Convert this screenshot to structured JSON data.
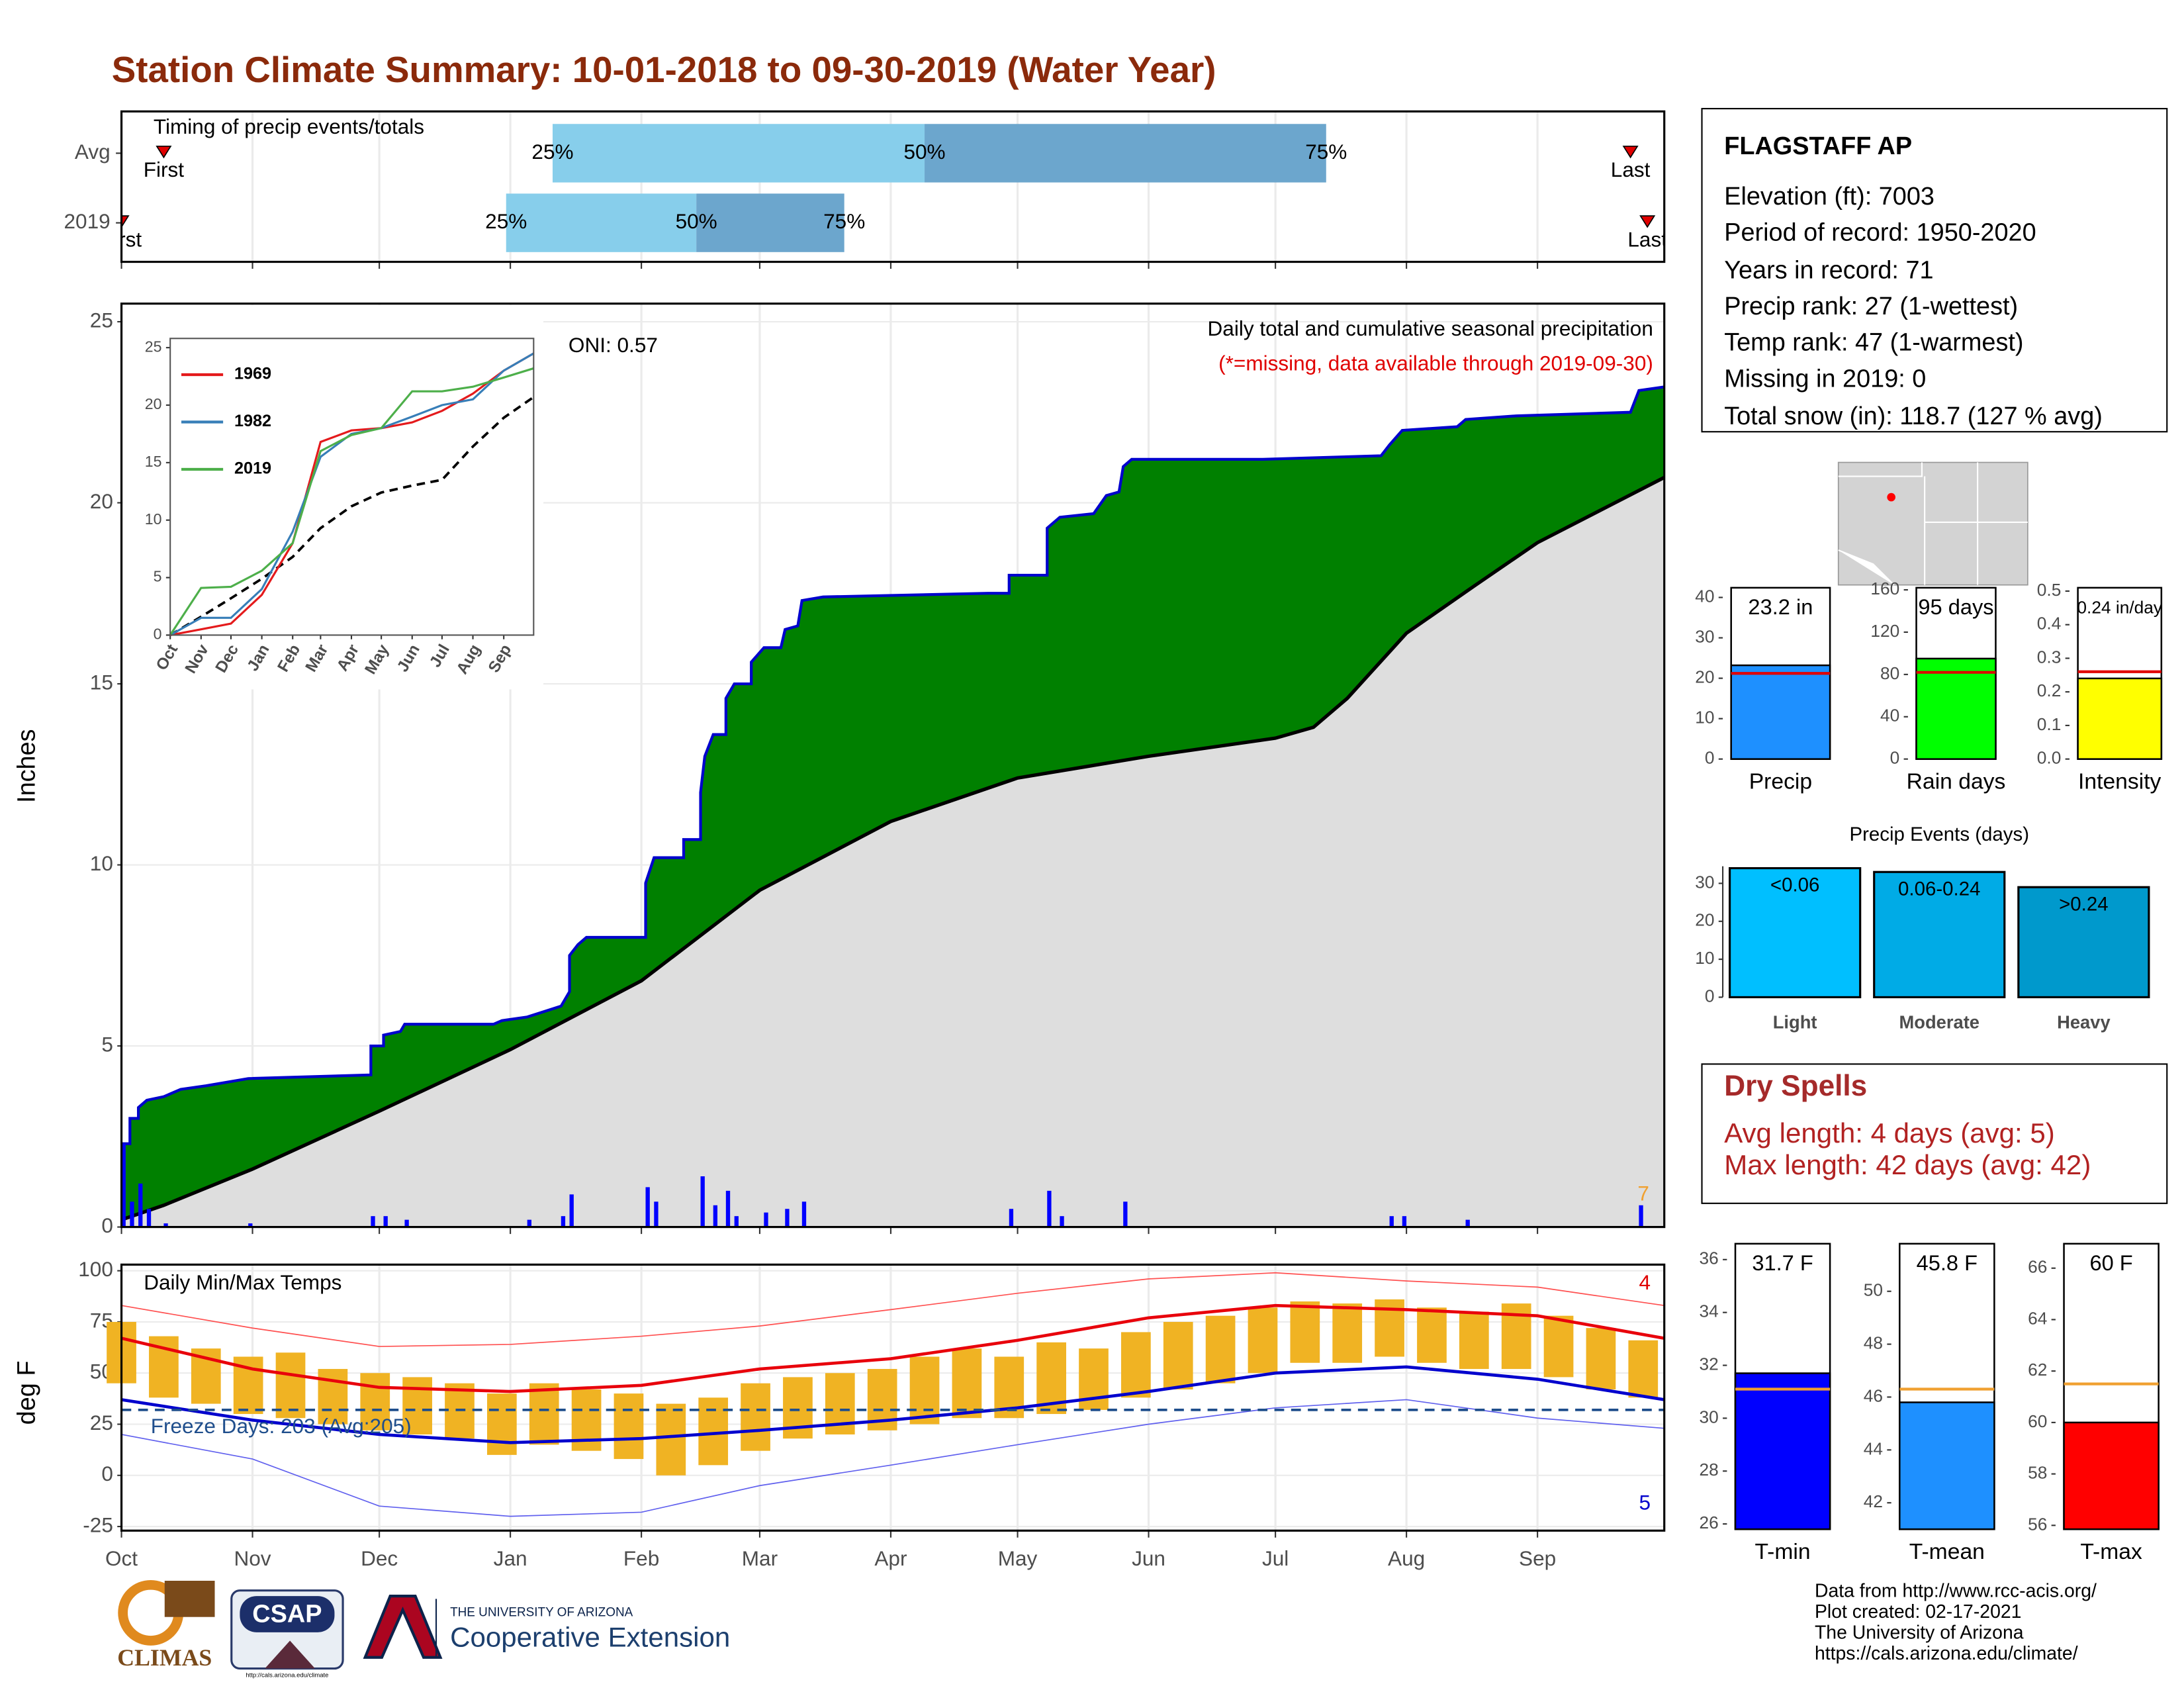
{
  "title": "Station Climate Summary: 10-01-2018 to 09-30-2019 (Water Year)",
  "chart_data": [
    {
      "type": "timing",
      "title": "Timing of precip events/totals",
      "xlim": [
        0,
        365
      ],
      "xticks": [
        0,
        31,
        61,
        92,
        123,
        151,
        182,
        212,
        243,
        273,
        304,
        335
      ],
      "grid": true,
      "colors": [
        "#87ceeb",
        "#6ca6cd"
      ],
      "marker_color": "#e00000",
      "rows": [
        {
          "name": "Avg",
          "values": [
            102,
            190,
            285
          ],
          "value_labels": [
            "25%",
            "50%",
            "75%"
          ],
          "first": 10,
          "last": 357,
          "first_label": "First",
          "last_label": "Last"
        },
        {
          "name": "2019",
          "values": [
            91,
            136,
            171
          ],
          "value_labels": [
            "25%",
            "50%",
            "75%"
          ],
          "first": 0,
          "last": 361,
          "first_label": "First",
          "last_label": "Last"
        }
      ]
    },
    {
      "type": "area",
      "title": "Daily total and cumulative seasonal precipitation",
      "subtitle": "(*=missing, data available through 2019-09-30)",
      "oni": "ONI: 0.57",
      "record_days": 7,
      "ylabel": "Inches",
      "xlim": [
        0,
        365
      ],
      "ylim": [
        0,
        25.5
      ],
      "xticks": [
        0,
        31,
        61,
        92,
        123,
        151,
        182,
        212,
        243,
        273,
        304,
        335
      ],
      "yticks": [
        0,
        5,
        10,
        15,
        20,
        25
      ],
      "grid": true,
      "cumulative": {
        "color": "#008000",
        "line_color": "#0000cd",
        "x": [
          0,
          2,
          2,
          4,
          4,
          6,
          10,
          14,
          20,
          30,
          59,
          59,
          62,
          62,
          66,
          67,
          88,
          90,
          96,
          104,
          106,
          106,
          108,
          110,
          124,
          124,
          126,
          133,
          133,
          137,
          137,
          138,
          140,
          143,
          143,
          145,
          149,
          149,
          152,
          156,
          157,
          160,
          161,
          166,
          205,
          210,
          210,
          219,
          219,
          222,
          230,
          233,
          236,
          237,
          239,
          270,
          298,
          300,
          303,
          316,
          318,
          330,
          357,
          359,
          365
        ],
        "values": [
          2.3,
          2.3,
          3.0,
          3.0,
          3.3,
          3.5,
          3.6,
          3.8,
          3.9,
          4.1,
          4.2,
          5.0,
          5.0,
          5.3,
          5.4,
          5.6,
          5.6,
          5.7,
          5.8,
          6.1,
          6.5,
          7.5,
          7.8,
          8.0,
          8.0,
          9.5,
          10.2,
          10.2,
          10.7,
          10.7,
          12.0,
          13.0,
          13.6,
          13.6,
          14.6,
          15.0,
          15.0,
          15.6,
          16.0,
          16.0,
          16.5,
          16.6,
          17.3,
          17.4,
          17.5,
          17.5,
          18.0,
          18.0,
          19.3,
          19.6,
          19.7,
          20.2,
          20.3,
          21.0,
          21.2,
          21.2,
          21.3,
          21.6,
          22.0,
          22.1,
          22.3,
          22.4,
          22.5,
          23.1,
          23.2
        ]
      },
      "average": {
        "color": "#dedede",
        "line_color": "#000000",
        "x": [
          0,
          10,
          31,
          61,
          92,
          123,
          151,
          182,
          212,
          243,
          273,
          282,
          290,
          297,
          304,
          320,
          335,
          365
        ],
        "values": [
          0.2,
          0.6,
          1.6,
          3.2,
          4.9,
          6.8,
          9.3,
          11.2,
          12.4,
          13.0,
          13.5,
          13.8,
          14.6,
          15.5,
          16.4,
          17.7,
          18.9,
          20.7
        ]
      },
      "daily": {
        "color": "#0000ff",
        "x": [
          0,
          2,
          4,
          6,
          10,
          30,
          59,
          62,
          67,
          96,
          104,
          106,
          124,
          126,
          137,
          140,
          143,
          145,
          152,
          157,
          161,
          210,
          219,
          222,
          237,
          300,
          303,
          318,
          359
        ],
        "values": [
          2.3,
          0.7,
          1.2,
          0.5,
          0.1,
          0.1,
          0.3,
          0.3,
          0.2,
          0.2,
          0.3,
          0.9,
          1.1,
          0.7,
          1.4,
          0.6,
          1.0,
          0.3,
          0.4,
          0.5,
          0.7,
          0.5,
          1.0,
          0.3,
          0.7,
          0.3,
          0.3,
          0.2,
          0.6
        ]
      }
    },
    {
      "type": "line",
      "xlim": [
        0,
        365
      ],
      "ylim": [
        0,
        25.8
      ],
      "x": [
        0,
        31,
        61,
        92,
        123,
        151,
        182,
        212,
        243,
        273,
        304,
        335,
        365
      ],
      "xticks": [
        {
          "value": 0,
          "label": "Oct"
        },
        {
          "value": 31,
          "label": "Nov"
        },
        {
          "value": 61,
          "label": "Dec"
        },
        {
          "value": 92,
          "label": "Jan"
        },
        {
          "value": 123,
          "label": "Feb"
        },
        {
          "value": 151,
          "label": "Mar"
        },
        {
          "value": 182,
          "label": "Apr"
        },
        {
          "value": 212,
          "label": "May"
        },
        {
          "value": 243,
          "label": "Jun"
        },
        {
          "value": 273,
          "label": "Jul"
        },
        {
          "value": 304,
          "label": "Aug"
        },
        {
          "value": 335,
          "label": "Sep"
        }
      ],
      "yticks": [
        0,
        5,
        10,
        15,
        20,
        25
      ],
      "series": [
        {
          "name": "1969",
          "color": "#e41a1c",
          "values": [
            0,
            0.5,
            1.0,
            3.5,
            8.0,
            16.8,
            17.8,
            18.0,
            18.5,
            19.5,
            21.0,
            23.0,
            24.5
          ]
        },
        {
          "name": "1982",
          "color": "#377eb8",
          "values": [
            0,
            1.5,
            1.5,
            4.0,
            9.0,
            15.5,
            17.5,
            18.0,
            19.0,
            20.0,
            20.5,
            23.0,
            24.5
          ]
        },
        {
          "name": "2019",
          "color": "#4daf4a",
          "values": [
            0,
            4.1,
            4.2,
            5.6,
            8.0,
            16.0,
            17.4,
            18.0,
            21.2,
            21.2,
            21.6,
            22.4,
            23.2
          ]
        }
      ],
      "average": {
        "color": "#000000",
        "values": [
          0,
          1.6,
          3.2,
          4.9,
          6.8,
          9.3,
          11.2,
          12.4,
          13.0,
          13.5,
          16.4,
          18.9,
          20.7
        ]
      }
    },
    {
      "type": "band",
      "title": "Daily Min/Max Temps",
      "ylabel": "deg F",
      "annotation": "Freeze Days: 203 (Avg:205)",
      "freeze": 32,
      "freeze_color": "#1f4e8c",
      "record_highs": 4,
      "record_lows": 5,
      "xlim": [
        0,
        365
      ],
      "ylim": [
        -27,
        103
      ],
      "grid": true,
      "xticks": [
        {
          "value": 0,
          "label": "Oct"
        },
        {
          "value": 31,
          "label": "Nov"
        },
        {
          "value": 61,
          "label": "Dec"
        },
        {
          "value": 92,
          "label": "Jan"
        },
        {
          "value": 123,
          "label": "Feb"
        },
        {
          "value": 151,
          "label": "Mar"
        },
        {
          "value": 182,
          "label": "Apr"
        },
        {
          "value": 212,
          "label": "May"
        },
        {
          "value": 243,
          "label": "Jun"
        },
        {
          "value": 273,
          "label": "Jul"
        },
        {
          "value": 304,
          "label": "Aug"
        },
        {
          "value": 335,
          "label": "Sep"
        }
      ],
      "yticks": [
        -25,
        0,
        25,
        50,
        75,
        100
      ],
      "observed": {
        "color": "#f0b323",
        "x": [
          0,
          10,
          20,
          30,
          40,
          50,
          60,
          70,
          80,
          90,
          100,
          110,
          120,
          130,
          140,
          150,
          160,
          170,
          180,
          190,
          200,
          210,
          220,
          230,
          240,
          250,
          260,
          270,
          280,
          290,
          300,
          310,
          320,
          330,
          340,
          350,
          360
        ],
        "lows": [
          45,
          38,
          35,
          30,
          28,
          25,
          22,
          20,
          18,
          10,
          15,
          12,
          8,
          0,
          5,
          12,
          18,
          20,
          22,
          25,
          28,
          28,
          30,
          32,
          38,
          42,
          45,
          50,
          55,
          55,
          58,
          55,
          52,
          52,
          48,
          42,
          38
        ],
        "highs": [
          75,
          68,
          62,
          58,
          60,
          52,
          50,
          48,
          45,
          40,
          45,
          42,
          40,
          35,
          38,
          45,
          48,
          50,
          52,
          58,
          62,
          58,
          65,
          62,
          70,
          75,
          78,
          82,
          85,
          84,
          86,
          82,
          80,
          84,
          78,
          72,
          66
        ]
      },
      "lines_x": [
        0,
        31,
        61,
        92,
        123,
        151,
        182,
        212,
        243,
        273,
        304,
        335,
        365
      ],
      "normal_high": {
        "color": "#e8000b",
        "values": [
          67,
          52,
          43,
          41,
          44,
          52,
          57,
          66,
          77,
          83,
          81,
          78,
          67
        ]
      },
      "normal_low": {
        "color": "#0000cd",
        "values": [
          37,
          27,
          20,
          16,
          18,
          22,
          27,
          33,
          41,
          50,
          53,
          47,
          37
        ]
      },
      "record_high": {
        "color": "#ff5050",
        "values": [
          83,
          72,
          63,
          64,
          68,
          73,
          81,
          89,
          96,
          99,
          95,
          92,
          83
        ]
      },
      "record_low": {
        "color": "#6060ee",
        "values": [
          20,
          8,
          -15,
          -20,
          -18,
          -5,
          5,
          15,
          25,
          33,
          37,
          28,
          23
        ]
      }
    },
    {
      "type": "bar",
      "categories": [
        "Precip"
      ],
      "values": [
        23.2
      ],
      "value_labels": [
        "23.2 in"
      ],
      "color": "#1e90ff",
      "average": 21.2,
      "average_color": "#e00000",
      "ylim": [
        0,
        42.4
      ],
      "yticks": [
        0,
        10,
        20,
        30,
        40
      ]
    },
    {
      "type": "bar",
      "categories": [
        "Rain days"
      ],
      "values": [
        95
      ],
      "value_labels": [
        "95 days"
      ],
      "color": "#00ff00",
      "average": 82,
      "average_color": "#e00000",
      "ylim": [
        0,
        162
      ],
      "yticks": [
        0,
        40,
        80,
        120,
        160
      ]
    },
    {
      "type": "bar",
      "categories": [
        "Intensity"
      ],
      "values": [
        0.24
      ],
      "value_labels": [
        "0.24 in/day"
      ],
      "color": "#ffff00",
      "average": 0.26,
      "average_color": "#e00000",
      "ylim": [
        0,
        0.51
      ],
      "yticks": [
        {
          "value": 0,
          "label": "0.0"
        },
        0.1,
        0.2,
        0.3,
        0.4,
        0.5
      ]
    },
    {
      "type": "bar",
      "title": "Precip Events (days)",
      "categories": [
        "Light",
        "Moderate",
        "Heavy"
      ],
      "values": [
        34,
        33,
        29
      ],
      "bar_labels": [
        "<0.06",
        "0.06-0.24",
        ">0.24"
      ],
      "colors": [
        "#00bfff",
        "#00abe6",
        "#0099cc"
      ],
      "ylim": [
        0,
        34.5
      ],
      "yticks": [
        0,
        10,
        20,
        30
      ]
    },
    {
      "type": "bar",
      "categories": [
        "T-min"
      ],
      "values": [
        31.7
      ],
      "value_labels": [
        "31.7 F"
      ],
      "color": "#0000ff",
      "average": 31.1,
      "average_color": "#f0a030",
      "ylim": [
        25.8,
        36.6
      ],
      "yticks": [
        26,
        28,
        30,
        32,
        34,
        36
      ]
    },
    {
      "type": "bar",
      "categories": [
        "T-mean"
      ],
      "values": [
        45.8
      ],
      "value_labels": [
        "45.8 F"
      ],
      "color": "#1e90ff",
      "average": 46.3,
      "average_color": "#f0a030",
      "ylim": [
        41.0,
        51.8
      ],
      "yticks": [
        42,
        44,
        46,
        48,
        50
      ]
    },
    {
      "type": "bar",
      "categories": [
        "T-max"
      ],
      "values": [
        60
      ],
      "value_labels": [
        "60 F"
      ],
      "color": "#ff0000",
      "average": 61.5,
      "average_color": "#f0a030",
      "ylim": [
        55.85,
        66.95
      ],
      "yticks": [
        56,
        58,
        60,
        62,
        64,
        66
      ]
    }
  ],
  "station": {
    "name": "FLAGSTAFF AP",
    "lines": [
      "Elevation (ft): 7003",
      "Period of record: 1950-2020",
      "Years in record: 71",
      "Precip rank: 27 (1-wettest)",
      "Temp rank: 47 (1-warmest)",
      "Missing in 2019: 0",
      "Total snow (in): 118.7 (127 % avg)"
    ]
  },
  "dry_spells": {
    "title": "Dry Spells",
    "lines": [
      "Avg length: 4 days (avg: 5)",
      "Max length: 42 days (avg: 42)"
    ]
  },
  "credits": [
    "Data from http://www.rcc-acis.org/",
    "Plot created: 02-17-2021",
    "The University of Arizona",
    "https://cals.arizona.edu/climate/"
  ],
  "logos": {
    "climas": "CLIMAS",
    "csap": "CSAP",
    "csap_url": "http://cals.arizona.edu/climate",
    "ua": "THE UNIVERSITY OF ARIZONA",
    "extension": "Cooperative Extension"
  }
}
